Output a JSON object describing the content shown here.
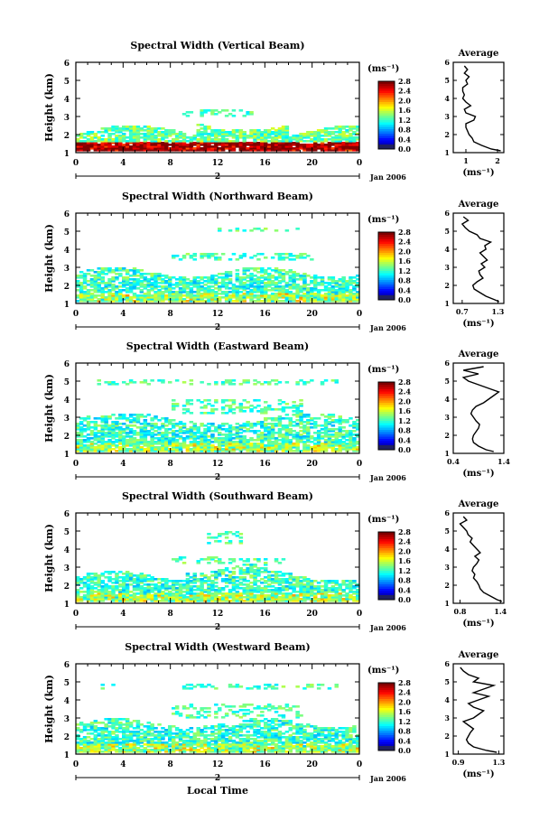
{
  "chart_data": [
    {
      "type": "heatmap",
      "title": "Spectral Width (Vertical Beam)",
      "beam": "vertical",
      "ylabel": "Height (km)",
      "ylim": [
        1,
        6
      ],
      "yticks": [
        "1",
        "2",
        "3",
        "4",
        "5",
        "6"
      ],
      "xlim": [
        0,
        24
      ],
      "xticks": [
        "0",
        "4",
        "8",
        "12",
        "16",
        "20",
        "0"
      ],
      "date_marker": "2",
      "date_label": "Jan 2006",
      "colorbar": {
        "unit": "(ms⁻¹)",
        "ticks": [
          "2.8",
          "2.4",
          "2.0",
          "1.6",
          "1.2",
          "0.8",
          "0.4",
          "0.0"
        ],
        "range": [
          0,
          2.8
        ]
      },
      "profile": {
        "title": "Average",
        "xlabel": "(ms⁻¹)",
        "xlim": [
          0.6,
          2.2
        ],
        "xticks": [
          "1",
          "2"
        ],
        "height": [
          1.1,
          1.2,
          1.4,
          1.6,
          1.8,
          2.0,
          2.2,
          2.4,
          2.6,
          2.8,
          3.0,
          3.2,
          3.4,
          3.6,
          3.8,
          4.0,
          4.2,
          4.4,
          4.6,
          4.8,
          5.0,
          5.2,
          5.4,
          5.6,
          5.8
        ],
        "value": [
          2.1,
          1.8,
          1.5,
          1.25,
          1.2,
          1.1,
          1.05,
          1.0,
          1.0,
          1.25,
          1.3,
          1.0,
          0.95,
          1.15,
          1.0,
          0.9,
          0.95,
          0.9,
          0.9,
          1.05,
          1.0,
          1.1,
          0.95,
          1.05,
          0.95
        ]
      }
    },
    {
      "type": "heatmap",
      "title": "Spectral Width (Northward Beam)",
      "beam": "north",
      "ylabel": "Height (km)",
      "ylim": [
        1,
        6
      ],
      "yticks": [
        "1",
        "2",
        "3",
        "4",
        "5",
        "6"
      ],
      "xlim": [
        0,
        24
      ],
      "xticks": [
        "0",
        "4",
        "8",
        "12",
        "16",
        "20",
        "0"
      ],
      "date_marker": "2",
      "date_label": "Jan 2006",
      "colorbar": {
        "unit": "(ms⁻¹)",
        "ticks": [
          "2.8",
          "2.4",
          "2.0",
          "1.6",
          "1.2",
          "0.8",
          "0.4",
          "0.0"
        ],
        "range": [
          0,
          2.8
        ]
      },
      "profile": {
        "title": "Average",
        "xlabel": "(ms⁻¹)",
        "xlim": [
          0.55,
          1.4
        ],
        "xticks": [
          "0.7",
          "1.3"
        ],
        "height": [
          1.1,
          1.2,
          1.4,
          1.6,
          1.8,
          2.0,
          2.2,
          2.4,
          2.6,
          2.8,
          3.0,
          3.2,
          3.4,
          3.6,
          3.8,
          4.0,
          4.2,
          4.4,
          4.6,
          4.8,
          5.0,
          5.2,
          5.4,
          5.6,
          5.8
        ],
        "value": [
          1.32,
          1.25,
          1.1,
          1.0,
          0.9,
          0.88,
          0.95,
          1.05,
          1.0,
          0.98,
          1.08,
          1.02,
          1.12,
          1.06,
          1.0,
          1.1,
          1.08,
          1.18,
          1.0,
          0.95,
          0.82,
          0.75,
          0.7,
          0.8,
          0.72
        ]
      }
    },
    {
      "type": "heatmap",
      "title": "Spectral Width (Eastward Beam)",
      "beam": "east",
      "ylabel": "Height (km)",
      "ylim": [
        1,
        6
      ],
      "yticks": [
        "1",
        "2",
        "3",
        "4",
        "5",
        "6"
      ],
      "xlim": [
        0,
        24
      ],
      "xticks": [
        "0",
        "4",
        "8",
        "12",
        "16",
        "20",
        "0"
      ],
      "date_marker": "2",
      "date_label": "Jan 2006",
      "colorbar": {
        "unit": "(ms⁻¹)",
        "ticks": [
          "2.8",
          "2.4",
          "2.0",
          "1.6",
          "1.2",
          "0.8",
          "0.4",
          "0.0"
        ],
        "range": [
          0,
          2.8
        ]
      },
      "profile": {
        "title": "Average",
        "xlabel": "(ms⁻¹)",
        "xlim": [
          0.4,
          1.4
        ],
        "xticks": [
          "0.4",
          "1.4"
        ],
        "height": [
          1.1,
          1.2,
          1.4,
          1.6,
          1.8,
          2.0,
          2.2,
          2.4,
          2.6,
          2.8,
          3.0,
          3.2,
          3.4,
          3.6,
          3.8,
          4.0,
          4.2,
          4.4,
          4.6,
          4.8,
          5.0,
          5.2,
          5.4,
          5.6,
          5.8
        ],
        "value": [
          1.2,
          1.05,
          0.9,
          0.8,
          0.78,
          0.8,
          0.85,
          0.9,
          0.92,
          0.85,
          0.8,
          0.75,
          0.78,
          0.85,
          1.0,
          1.1,
          1.2,
          1.3,
          1.1,
          0.9,
          0.7,
          0.6,
          0.9,
          0.6,
          1.0
        ]
      }
    },
    {
      "type": "heatmap",
      "title": "Spectral Width (Southward Beam)",
      "beam": "south",
      "ylabel": "Height (km)",
      "ylim": [
        1,
        6
      ],
      "yticks": [
        "1",
        "2",
        "3",
        "4",
        "5",
        "6"
      ],
      "xlim": [
        0,
        24
      ],
      "xticks": [
        "0",
        "4",
        "8",
        "12",
        "16",
        "20",
        "0"
      ],
      "date_marker": "2",
      "date_label": "Jan 2006",
      "colorbar": {
        "unit": "(ms⁻¹)",
        "ticks": [
          "2.8",
          "2.4",
          "2.0",
          "1.6",
          "1.2",
          "0.8",
          "0.4",
          "0.0"
        ],
        "range": [
          0,
          2.8
        ]
      },
      "profile": {
        "title": "Average",
        "xlabel": "(ms⁻¹)",
        "xlim": [
          0.7,
          1.45
        ],
        "xticks": [
          "0.8",
          "1.4"
        ],
        "height": [
          1.1,
          1.2,
          1.4,
          1.6,
          1.8,
          2.0,
          2.2,
          2.4,
          2.6,
          2.8,
          3.0,
          3.2,
          3.4,
          3.6,
          3.8,
          4.0,
          4.2,
          4.4,
          4.6,
          4.8,
          5.0,
          5.2,
          5.4,
          5.6,
          5.8
        ],
        "value": [
          1.42,
          1.35,
          1.25,
          1.15,
          1.1,
          1.08,
          1.05,
          1.0,
          1.02,
          0.98,
          1.0,
          1.05,
          1.08,
          1.02,
          1.1,
          1.05,
          1.0,
          0.95,
          0.98,
          0.92,
          0.9,
          0.85,
          0.8,
          0.9,
          0.85
        ]
      }
    },
    {
      "type": "heatmap",
      "title": "Spectral Width (Westward Beam)",
      "beam": "west",
      "ylabel": "Height (km)",
      "ylim": [
        1,
        6
      ],
      "yticks": [
        "1",
        "2",
        "3",
        "4",
        "5",
        "6"
      ],
      "xlim": [
        0,
        24
      ],
      "xticks": [
        "0",
        "4",
        "8",
        "12",
        "16",
        "20",
        "0"
      ],
      "date_marker": "2",
      "date_label": "Jan 2006",
      "xlabel": "Local Time",
      "colorbar": {
        "unit": "(ms⁻¹)",
        "ticks": [
          "2.8",
          "2.4",
          "2.0",
          "1.6",
          "1.2",
          "0.8",
          "0.4",
          "0.0"
        ],
        "range": [
          0,
          2.8
        ]
      },
      "profile": {
        "title": "Average",
        "xlabel": "(ms⁻¹)",
        "xlim": [
          0.85,
          1.35
        ],
        "xticks": [
          "0.9",
          "1.3"
        ],
        "height": [
          1.1,
          1.2,
          1.4,
          1.6,
          1.8,
          2.0,
          2.2,
          2.4,
          2.6,
          2.8,
          3.0,
          3.2,
          3.4,
          3.6,
          3.8,
          4.0,
          4.2,
          4.4,
          4.6,
          4.8,
          5.0,
          5.2,
          5.4,
          5.6,
          5.8
        ],
        "value": [
          1.28,
          1.18,
          1.05,
          1.0,
          0.98,
          1.0,
          1.02,
          1.05,
          1.0,
          0.95,
          1.05,
          1.1,
          1.15,
          1.05,
          1.0,
          1.1,
          1.2,
          1.05,
          1.15,
          1.25,
          1.05,
          1.1,
          1.0,
          0.95,
          0.92
        ]
      }
    }
  ]
}
